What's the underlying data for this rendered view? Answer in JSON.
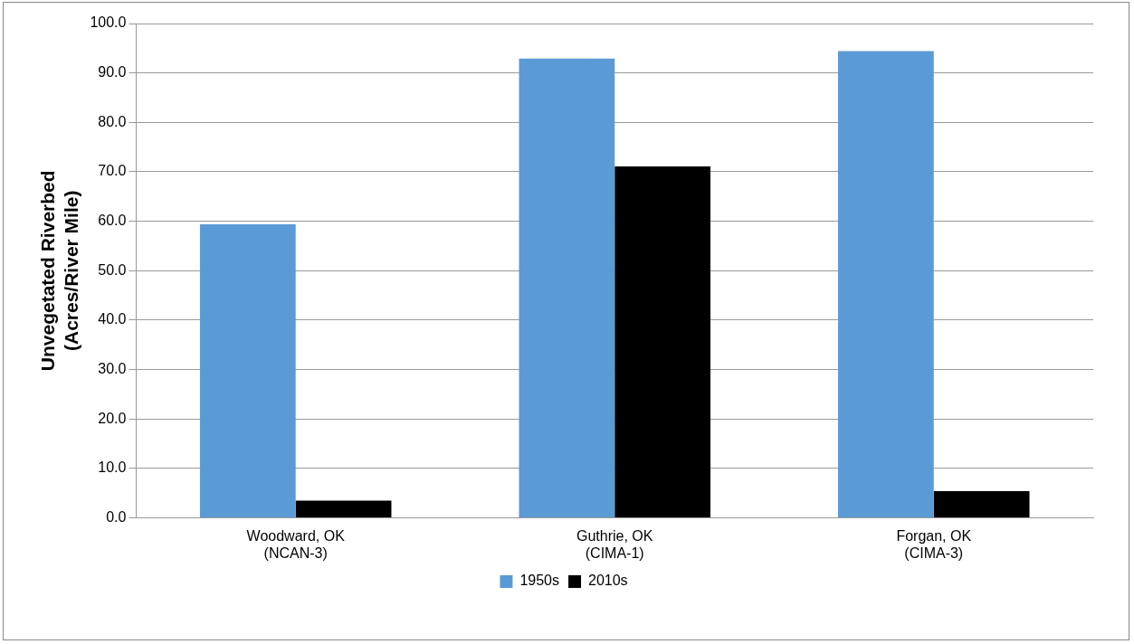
{
  "chart_data": {
    "type": "bar",
    "ylabel": "Unvegetated Riverbed\n(Acres/River Mile)",
    "categories": [
      "Woodward, OK\n(NCAN-3)",
      "Guthrie, OK\n(CIMA-1)",
      "Forgan, OK\n(CIMA-3)"
    ],
    "series": [
      {
        "name": "1950s",
        "color": "#5b9bd5",
        "values": [
          59.4,
          92.9,
          94.4
        ]
      },
      {
        "name": "2010s",
        "color": "#000000",
        "values": [
          3.5,
          71.1,
          5.4
        ]
      }
    ],
    "ylim": [
      0,
      100
    ],
    "yticks": [
      {
        "value": 0,
        "label": "0.0"
      },
      {
        "value": 10,
        "label": "10.0"
      },
      {
        "value": 20,
        "label": "20.0"
      },
      {
        "value": 30,
        "label": "30.0"
      },
      {
        "value": 40,
        "label": "40.0"
      },
      {
        "value": 50,
        "label": "50.0"
      },
      {
        "value": 60,
        "label": "60.0"
      },
      {
        "value": 70,
        "label": "70.0"
      },
      {
        "value": 80,
        "label": "80.0"
      },
      {
        "value": 90,
        "label": "90.0"
      },
      {
        "value": 100,
        "label": "100.0"
      }
    ],
    "grid": "y",
    "legend": "bottom"
  }
}
